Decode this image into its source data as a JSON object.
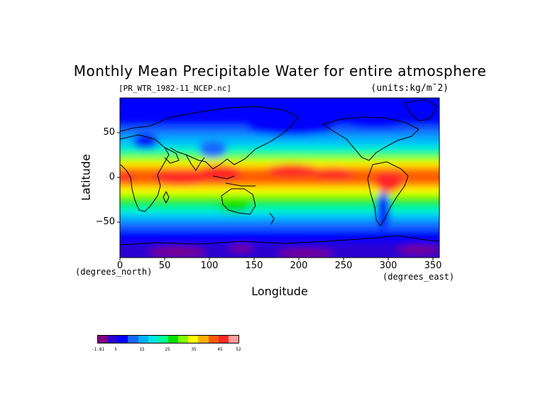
{
  "map": {
    "title": "Monthly Mean Precipitable Water for entire atmosphere",
    "file_label": "[PR_WTR_1982-11_NCEP.nc]",
    "units_label": "(units:kg/m¯2)",
    "y_axis": {
      "label": "Latitude",
      "unit": "(degrees_north)",
      "ticks": [
        "50",
        "0",
        "−50"
      ]
    },
    "x_axis": {
      "label": "Longitude",
      "unit": "(degrees_east)",
      "ticks": [
        "0",
        "50",
        "100",
        "150",
        "200",
        "250",
        "300",
        "350"
      ]
    },
    "colorbar": {
      "ticks": [
        "-1.81",
        "5",
        "15",
        "25",
        "35",
        "45",
        "52"
      ],
      "colors": [
        "#800080",
        "#2a00d0",
        "#0000ff",
        "#1468ff",
        "#00b0ff",
        "#00e4e4",
        "#00ff96",
        "#00e000",
        "#80ff00",
        "#ffff00",
        "#ffb000",
        "#ff5a00",
        "#ff2828",
        "#ff9c9c"
      ]
    }
  }
}
